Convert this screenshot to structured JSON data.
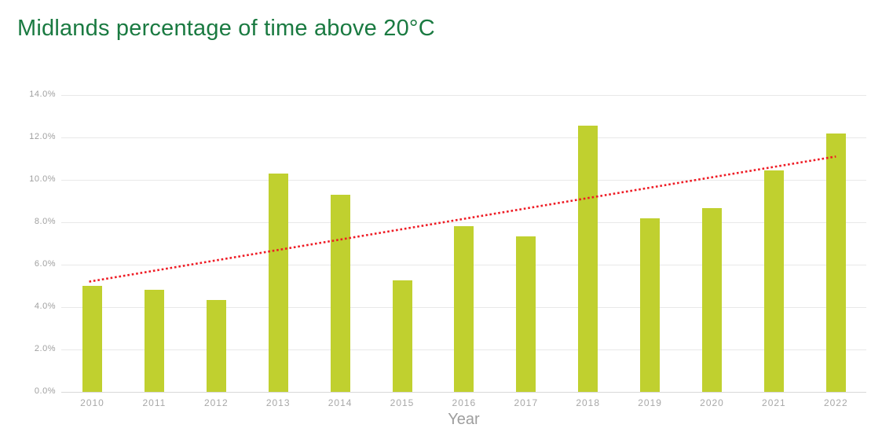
{
  "colors": {
    "title_green": "#1a7a41",
    "bar_green": "#c0d02f",
    "trend_red": "#ee1c25",
    "axis_text_gray": "#a0a0a0",
    "gridline_gray": "#e8e8e8"
  },
  "chart_data": {
    "type": "bar",
    "title": "Midlands percentage of time above 20°C",
    "categories": [
      "2010",
      "2011",
      "2012",
      "2013",
      "2014",
      "2015",
      "2016",
      "2017",
      "2018",
      "2019",
      "2020",
      "2021",
      "2022"
    ],
    "values": [
      5.0,
      4.8,
      4.35,
      10.3,
      9.3,
      5.25,
      7.8,
      7.35,
      12.55,
      8.2,
      8.65,
      10.45,
      12.2
    ],
    "unit": "%",
    "xlabel": "Year",
    "ylabel": "",
    "ylim": [
      0,
      14
    ],
    "ytick_step": 2,
    "y_tick_labels": [
      "0.0%",
      "2.0%",
      "4.0%",
      "6.0%",
      "8.0%",
      "10.0%",
      "12.0%",
      "14.0%"
    ],
    "grid": true,
    "legend_position": "none",
    "bar_color": "#c0d02f",
    "trendline": {
      "type": "linear",
      "style": "dotted",
      "color": "#ee1c25",
      "start_category": "2010",
      "end_category": "2022",
      "start_value_pct": 5.2,
      "end_value_pct": 11.1
    }
  }
}
